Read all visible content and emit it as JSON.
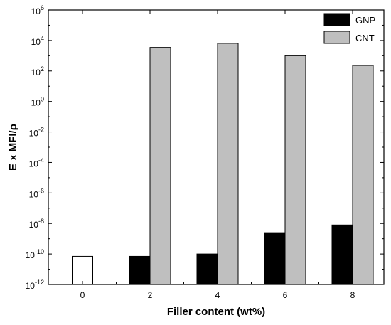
{
  "chart_data": {
    "type": "bar",
    "categories": [
      "0",
      "2",
      "4",
      "6",
      "8"
    ],
    "series": [
      {
        "name": "GNP",
        "color": "#000000",
        "values": [
          7e-11,
          7e-11,
          1e-10,
          2.5e-09,
          8e-09
        ]
      },
      {
        "name": "CNT",
        "color": "#bfbfbf",
        "values": [
          null,
          3500,
          6500,
          1000,
          230
        ]
      }
    ],
    "special_fills": [
      {
        "series": "GNP",
        "category": "0",
        "color": "#ffffff"
      }
    ],
    "xlabel": "Filler content (wt%)",
    "ylabel": "E x MFI/ρ",
    "yscale": "log",
    "ylim": [
      1e-12,
      1000000.0
    ],
    "yticks": [
      {
        "base": "10",
        "exp": "-12"
      },
      {
        "base": "10",
        "exp": "-10"
      },
      {
        "base": "10",
        "exp": "-8"
      },
      {
        "base": "10",
        "exp": "-6"
      },
      {
        "base": "10",
        "exp": "-4"
      },
      {
        "base": "10",
        "exp": "-2"
      },
      {
        "base": "10",
        "exp": "0"
      },
      {
        "base": "10",
        "exp": "2"
      },
      {
        "base": "10",
        "exp": "4"
      },
      {
        "base": "10",
        "exp": "6"
      }
    ],
    "legend_position": "top-right",
    "grid": false
  }
}
